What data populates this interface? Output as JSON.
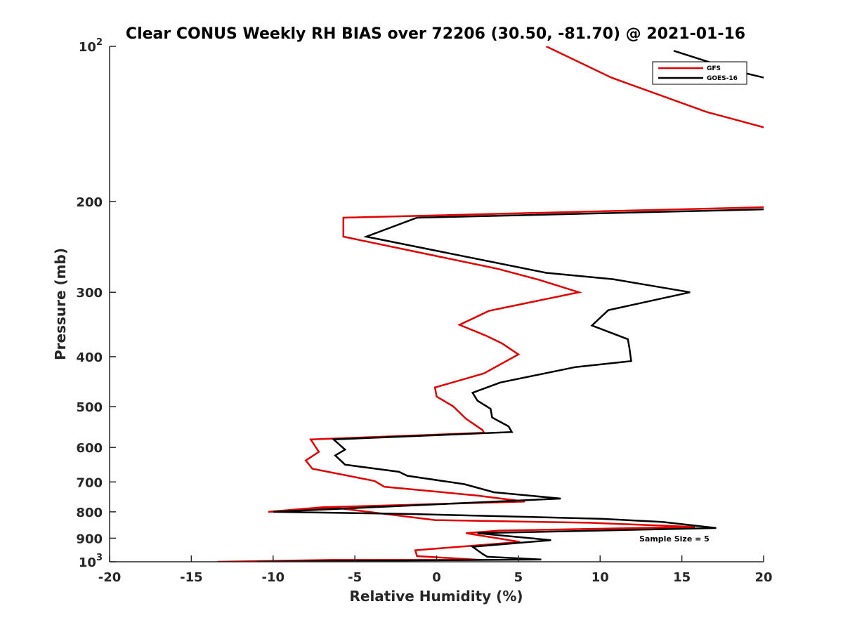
{
  "chart_data": {
    "type": "line",
    "title": "Clear CONUS Weekly RH BIAS over 72206 (30.50, -81.70) @ 2021-01-16",
    "xlabel": "Relative Humidity (%)",
    "ylabel": "Pressure (mb)",
    "xlim": [
      -20,
      20
    ],
    "ylim": [
      100,
      1000
    ],
    "y_scale": "log",
    "y_reversed": true,
    "grid": false,
    "legend_position": "top-right",
    "annotation": "Sample Size = 5",
    "x_ticks": [
      "-20",
      "-15",
      "-10",
      "-5",
      "0",
      "5",
      "10",
      "15",
      "20"
    ],
    "y_ticks": [
      {
        "value": 100,
        "base": "10",
        "exp": "2"
      },
      {
        "value": 200,
        "base": "200",
        "exp": ""
      },
      {
        "value": 300,
        "base": "300",
        "exp": ""
      },
      {
        "value": 400,
        "base": "400",
        "exp": ""
      },
      {
        "value": 500,
        "base": "500",
        "exp": ""
      },
      {
        "value": 600,
        "base": "600",
        "exp": ""
      },
      {
        "value": 700,
        "base": "700",
        "exp": ""
      },
      {
        "value": 800,
        "base": "800",
        "exp": ""
      },
      {
        "value": 900,
        "base": "900",
        "exp": ""
      },
      {
        "value": 1000,
        "base": "10",
        "exp": "3"
      }
    ],
    "series": [
      {
        "name": "GFS",
        "color": "#e00000",
        "points": [
          [
            6.7,
            100
          ],
          [
            10.7,
            115
          ],
          [
            16.5,
            134
          ],
          [
            20.5,
            145
          ],
          [
            20.5,
            205
          ],
          [
            -5.7,
            215
          ],
          [
            -5.7,
            234
          ],
          [
            3.7,
            270
          ],
          [
            6.3,
            284
          ],
          [
            8.7,
            300
          ],
          [
            3.2,
            326
          ],
          [
            1.4,
            347
          ],
          [
            3.0,
            364
          ],
          [
            4.0,
            377
          ],
          [
            5.0,
            396
          ],
          [
            2.9,
            431
          ],
          [
            -0.1,
            459
          ],
          [
            0.0,
            478
          ],
          [
            1.0,
            499
          ],
          [
            1.8,
            528
          ],
          [
            2.8,
            555
          ],
          [
            2.9,
            562
          ],
          [
            -7.7,
            579
          ],
          [
            -7.2,
            612
          ],
          [
            -8.0,
            636
          ],
          [
            -7.6,
            660
          ],
          [
            -3.8,
            697
          ],
          [
            -3.2,
            715
          ],
          [
            2.5,
            744
          ],
          [
            5.4,
            764
          ],
          [
            -7.0,
            784
          ],
          [
            -10.3,
            800
          ],
          [
            -6.0,
            787
          ],
          [
            -0.1,
            830
          ],
          [
            9.3,
            840
          ],
          [
            15.8,
            856
          ],
          [
            3.8,
            870
          ],
          [
            1.8,
            880
          ],
          [
            5.1,
            915
          ],
          [
            -1.3,
            950
          ],
          [
            -1.2,
            975
          ],
          [
            2.7,
            992
          ],
          [
            -6.5,
            992
          ],
          [
            -13.4,
            1000
          ]
        ]
      },
      {
        "name": "GOES-16",
        "color": "#000000",
        "points": [
          [
            14.5,
            102
          ],
          [
            18.5,
            112
          ],
          [
            20.5,
            116
          ],
          [
            20.5,
            207
          ],
          [
            -1.2,
            215
          ],
          [
            -4.3,
            234
          ],
          [
            6.7,
            275
          ],
          [
            10.8,
            283
          ],
          [
            15.5,
            300
          ],
          [
            10.5,
            325
          ],
          [
            9.5,
            348
          ],
          [
            11.7,
            370
          ],
          [
            11.8,
            386
          ],
          [
            11.9,
            408
          ],
          [
            8.5,
            419
          ],
          [
            3.9,
            449
          ],
          [
            2.2,
            470
          ],
          [
            2.5,
            487
          ],
          [
            3.3,
            505
          ],
          [
            3.4,
            525
          ],
          [
            4.4,
            546
          ],
          [
            4.6,
            560
          ],
          [
            -6.3,
            579
          ],
          [
            -5.6,
            606
          ],
          [
            -6.2,
            622
          ],
          [
            -5.6,
            648
          ],
          [
            -2.3,
            669
          ],
          [
            -1.8,
            681
          ],
          [
            1.7,
            707
          ],
          [
            3.5,
            733
          ],
          [
            7.6,
            754
          ],
          [
            -10.0,
            800
          ],
          [
            -1.5,
            808
          ],
          [
            10.0,
            825
          ],
          [
            13.8,
            837
          ],
          [
            17.1,
            860
          ],
          [
            2.5,
            880
          ],
          [
            7.0,
            908
          ],
          [
            2.2,
            935
          ],
          [
            2.8,
            965
          ],
          [
            3.1,
            978
          ],
          [
            6.4,
            990
          ],
          [
            -1.5,
            994
          ],
          [
            -11.0,
            1000
          ]
        ]
      }
    ]
  }
}
